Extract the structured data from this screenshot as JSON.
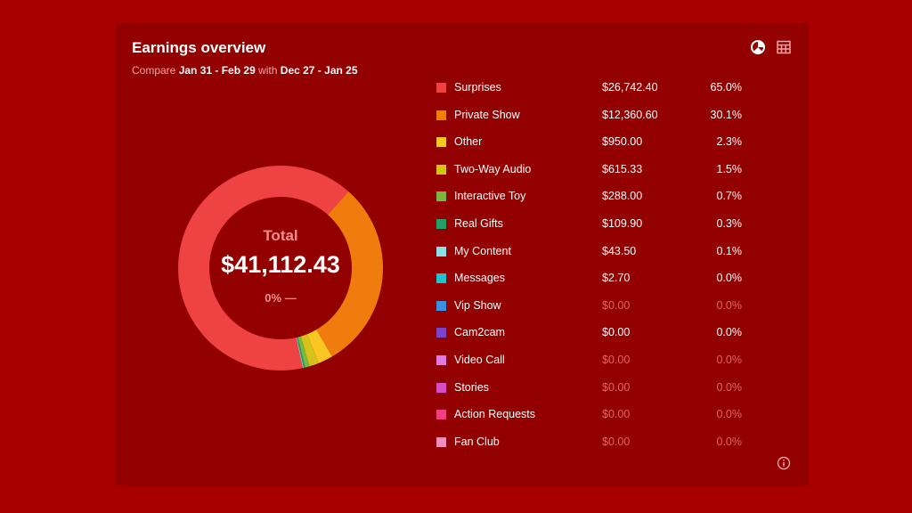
{
  "header": {
    "title": "Earnings overview",
    "compare_prefix": "Compare",
    "period_current": "Jan 31 - Feb 29",
    "compare_with": "with",
    "period_previous": "Dec 27 - Jan 25"
  },
  "toolbar": {
    "donut_view_icon": "pie-chart-icon",
    "table_view_icon": "table-icon"
  },
  "summary": {
    "total_label": "Total",
    "total_value": "$41,112.43",
    "change": "0% —"
  },
  "footer": {
    "info_icon": "info-icon"
  },
  "chart_data": {
    "type": "pie",
    "title": "Earnings overview",
    "center_label": "Total",
    "center_value": "$41,112.43",
    "categories": [
      "Surprises",
      "Private Show",
      "Other",
      "Two-Way Audio",
      "Interactive Toy",
      "Real Gifts",
      "My Content",
      "Messages",
      "Vip Show",
      "Cam2cam",
      "Video Call",
      "Stories",
      "Action Requests",
      "Fan Club"
    ],
    "amounts": [
      "$26,742.40",
      "$12,360.60",
      "$950.00",
      "$615.33",
      "$288.00",
      "$109.90",
      "$43.50",
      "$2.70",
      "$0.00",
      "$0.00",
      "$0.00",
      "$0.00",
      "$0.00",
      "$0.00"
    ],
    "percent_labels": [
      "65.0%",
      "30.1%",
      "2.3%",
      "1.5%",
      "0.7%",
      "0.3%",
      "0.1%",
      "0.0%",
      "0.0%",
      "0.0%",
      "0.0%",
      "0.0%",
      "0.0%",
      "0.0%"
    ],
    "values": [
      26742.4,
      12360.6,
      950.0,
      615.33,
      288.0,
      109.9,
      43.5,
      2.7,
      0,
      0,
      0,
      0,
      0,
      0
    ],
    "colors": [
      "#ef4343",
      "#f17c0e",
      "#f9c623",
      "#d7c21c",
      "#7cb83c",
      "#23a06a",
      "#8fe0e4",
      "#22c2cf",
      "#3d8fe0",
      "#7b45c9",
      "#e07ae3",
      "#d94cc5",
      "#f0407f",
      "#f28bc0"
    ],
    "muted": [
      false,
      false,
      false,
      false,
      false,
      false,
      false,
      false,
      true,
      false,
      true,
      true,
      true,
      true
    ],
    "legend_position": "right"
  }
}
